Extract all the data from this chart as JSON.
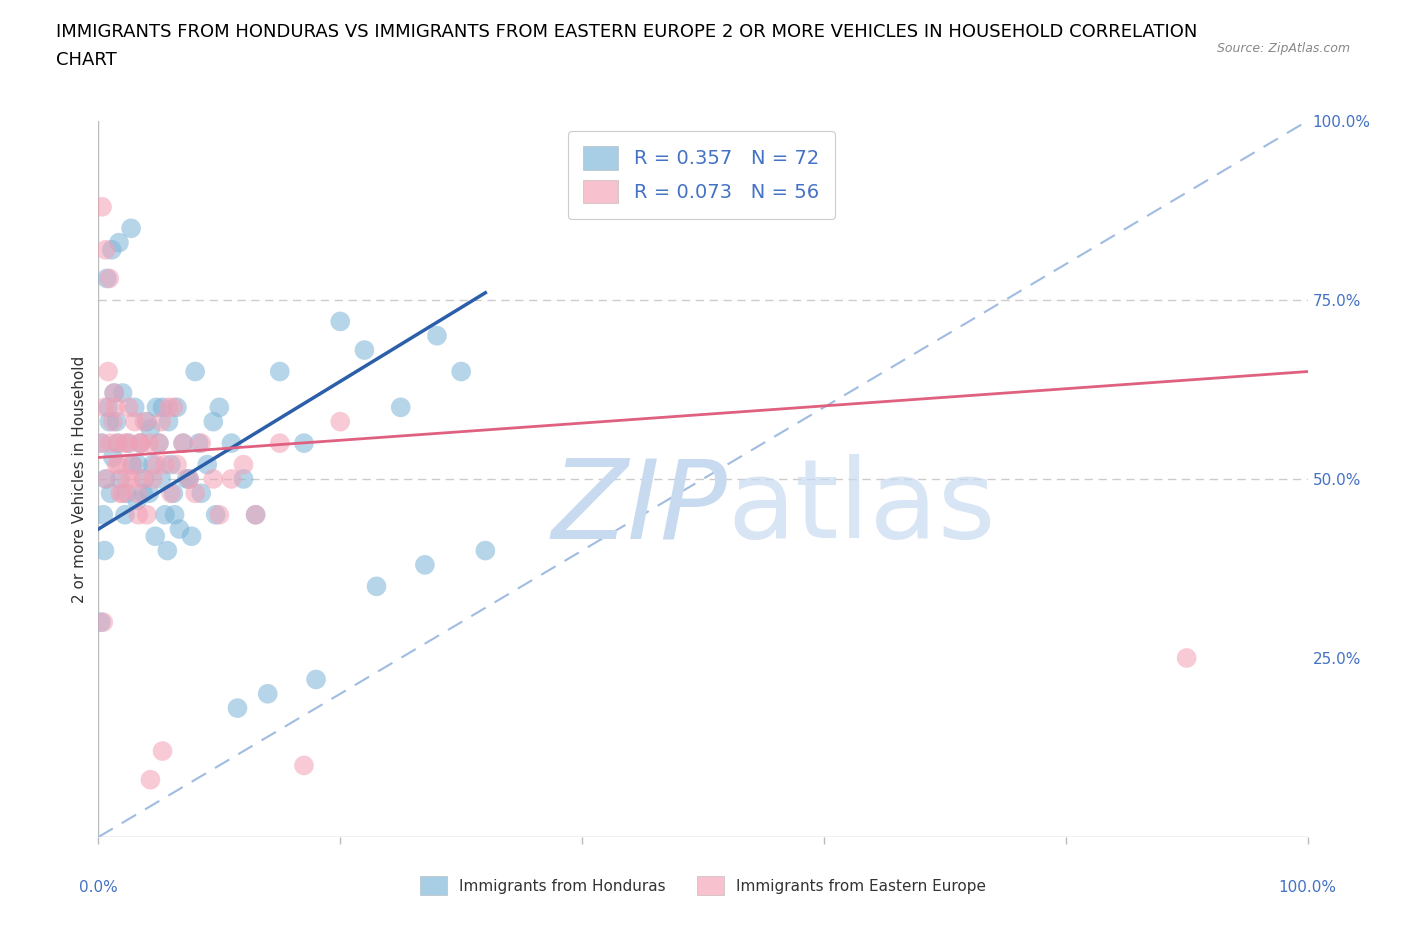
{
  "title_line1": "IMMIGRANTS FROM HONDURAS VS IMMIGRANTS FROM EASTERN EUROPE 2 OR MORE VEHICLES IN HOUSEHOLD CORRELATION",
  "title_line2": "CHART",
  "source": "Source: ZipAtlas.com",
  "ylabel": "2 or more Vehicles in Household",
  "ytick_labels": [
    "25.0%",
    "50.0%",
    "75.0%",
    "100.0%"
  ],
  "ytick_values": [
    25,
    50,
    75,
    100
  ],
  "xtick_labels": [
    "0.0%",
    "100.0%"
  ],
  "xtick_values": [
    0,
    100
  ],
  "legend_r1": "R = 0.357",
  "legend_n1": "N = 72",
  "legend_r2": "R = 0.073",
  "legend_n2": "N = 56",
  "color_honduras": "#7ab4d8",
  "color_eastern": "#f4a0b5",
  "color_blue_line": "#2c5faa",
  "color_pink_line": "#e06080",
  "color_dashed": "#a0bce0",
  "background": "#ffffff",
  "watermark_color": "#c8daf0",
  "honduras_x": [
    0.3,
    0.5,
    0.8,
    1.0,
    1.2,
    1.5,
    1.8,
    2.0,
    2.2,
    2.5,
    2.8,
    3.0,
    3.2,
    3.5,
    3.8,
    4.0,
    4.2,
    4.5,
    4.8,
    5.0,
    5.2,
    5.5,
    5.8,
    6.0,
    6.2,
    6.5,
    7.0,
    7.5,
    8.0,
    8.5,
    9.0,
    9.5,
    10.0,
    11.0,
    12.0,
    13.0,
    15.0,
    17.0,
    20.0,
    22.0,
    25.0,
    28.0,
    30.0,
    0.2,
    0.4,
    0.6,
    0.9,
    1.3,
    1.6,
    2.3,
    3.3,
    4.3,
    5.3,
    6.3,
    7.3,
    8.3,
    0.7,
    1.1,
    1.7,
    2.7,
    3.7,
    4.7,
    5.7,
    6.7,
    7.7,
    9.7,
    11.5,
    14.0,
    18.0,
    23.0,
    27.0,
    32.0
  ],
  "honduras_y": [
    55,
    40,
    60,
    48,
    53,
    58,
    50,
    62,
    45,
    55,
    52,
    60,
    47,
    55,
    50,
    58,
    48,
    52,
    60,
    55,
    50,
    45,
    58,
    52,
    48,
    60,
    55,
    50,
    65,
    48,
    52,
    58,
    60,
    55,
    50,
    45,
    65,
    55,
    72,
    68,
    60,
    70,
    65,
    30,
    45,
    50,
    58,
    62,
    55,
    48,
    52,
    57,
    60,
    45,
    50,
    55,
    78,
    82,
    83,
    85,
    48,
    42,
    40,
    43,
    42,
    45,
    18,
    20,
    22,
    35,
    38,
    40
  ],
  "eastern_x": [
    0.2,
    0.5,
    0.8,
    1.2,
    1.5,
    1.8,
    2.2,
    2.5,
    2.8,
    3.2,
    3.5,
    3.8,
    4.2,
    4.8,
    5.2,
    5.8,
    6.2,
    7.0,
    8.0,
    9.5,
    12.0,
    15.0,
    20.0,
    0.4,
    0.7,
    1.0,
    1.4,
    1.7,
    2.0,
    2.4,
    2.7,
    3.0,
    3.4,
    3.7,
    4.0,
    4.5,
    5.0,
    5.5,
    6.0,
    6.5,
    7.5,
    8.5,
    10.0,
    11.0,
    13.0,
    17.0,
    0.3,
    0.6,
    0.9,
    1.3,
    1.6,
    2.3,
    3.3,
    4.3,
    5.3,
    90.0
  ],
  "eastern_y": [
    55,
    60,
    65,
    58,
    52,
    48,
    55,
    60,
    52,
    48,
    55,
    58,
    55,
    52,
    58,
    60,
    60,
    55,
    48,
    50,
    52,
    55,
    58,
    30,
    50,
    55,
    60,
    52,
    48,
    55,
    50,
    58,
    55,
    50,
    45,
    50,
    55,
    52,
    48,
    52,
    50,
    55,
    45,
    50,
    45,
    10,
    88,
    82,
    78,
    62,
    55,
    50,
    45,
    8,
    12,
    25
  ],
  "xmin": 0,
  "xmax": 100,
  "ymin": 0,
  "ymax": 100,
  "blue_line_x": [
    0,
    32
  ],
  "blue_line_y": [
    43,
    76
  ],
  "pink_line_x": [
    0,
    100
  ],
  "pink_line_y": [
    53,
    65
  ],
  "dash_line_x": [
    0,
    100
  ],
  "dash_line_y": [
    0,
    100
  ]
}
